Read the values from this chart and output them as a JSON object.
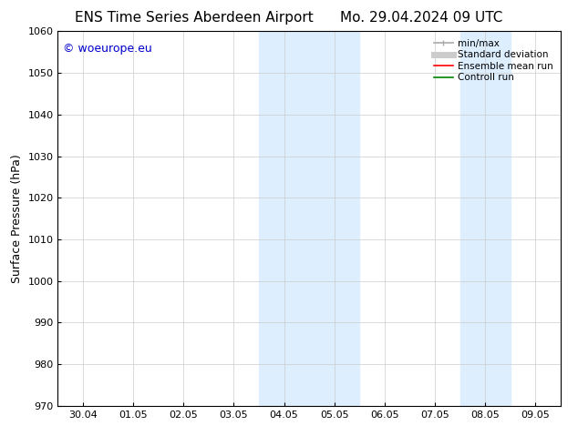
{
  "title_left": "ENS Time Series Aberdeen Airport",
  "title_right": "Mo. 29.04.2024 09 UTC",
  "ylabel": "Surface Pressure (hPa)",
  "ylim": [
    970,
    1060
  ],
  "yticks": [
    970,
    980,
    990,
    1000,
    1010,
    1020,
    1030,
    1040,
    1050,
    1060
  ],
  "xtick_labels": [
    "30.04",
    "01.05",
    "02.05",
    "03.05",
    "04.05",
    "05.05",
    "06.05",
    "07.05",
    "08.05",
    "09.05"
  ],
  "shaded_regions": [
    {
      "xstart": 3.5,
      "xend": 5.5
    },
    {
      "xstart": 7.5,
      "xend": 8.5
    }
  ],
  "shaded_color": "#ddeeff",
  "watermark": "© woeurope.eu",
  "watermark_color": "#0000cc",
  "legend_items": [
    {
      "label": "min/max",
      "color": "#aaaaaa",
      "lw": 1.2
    },
    {
      "label": "Standard deviation",
      "color": "#cccccc",
      "lw": 5
    },
    {
      "label": "Ensemble mean run",
      "color": "#ff0000",
      "lw": 1.2
    },
    {
      "label": "Controll run",
      "color": "#008000",
      "lw": 1.2
    }
  ],
  "bg_color": "#ffffff",
  "title_fontsize": 11,
  "axis_fontsize": 9,
  "tick_fontsize": 8,
  "legend_fontsize": 7.5
}
